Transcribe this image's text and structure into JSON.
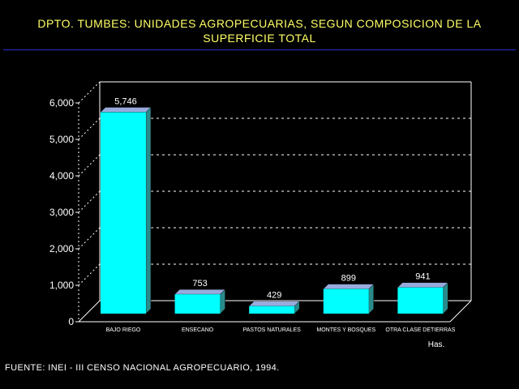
{
  "header": {
    "title_line1": "DPTO. TUMBES: UNIDADES AGROPECUARIAS, SEGUN COMPOSICION DE LA",
    "title_line2": "SUPERFICIE TOTAL"
  },
  "footer": {
    "source": "FUENTE: INEI - III CENSO NACIONAL AGROPECUARIO, 1994."
  },
  "colors": {
    "title": "#ffff66",
    "bar_front": "#00ffff",
    "bar_top": "#9ad",
    "bar_side": "#2a8a8a",
    "rule": "#2233cc",
    "grid": "#ffffff"
  },
  "chart_data": {
    "type": "bar",
    "categories": [
      "BAJO RIEGO",
      "ENSECANO",
      "PASTOS NATURALES",
      "MONTES Y BOSQUES",
      "OTRA CLASE DETIERRAS"
    ],
    "values": [
      5746,
      753,
      429,
      899,
      941
    ],
    "value_labels": [
      "5,746",
      "753",
      "429",
      "899",
      "941"
    ],
    "yticks": [
      0,
      1000,
      2000,
      3000,
      4000,
      5000,
      6000
    ],
    "ytick_labels": [
      "0",
      "1,000",
      "2,000",
      "3,000",
      "4,000",
      "5,000",
      "6,000"
    ],
    "ylim": [
      0,
      6000
    ],
    "unit_label": "Has.",
    "grid": "dashed horizontal",
    "three_d": true
  }
}
